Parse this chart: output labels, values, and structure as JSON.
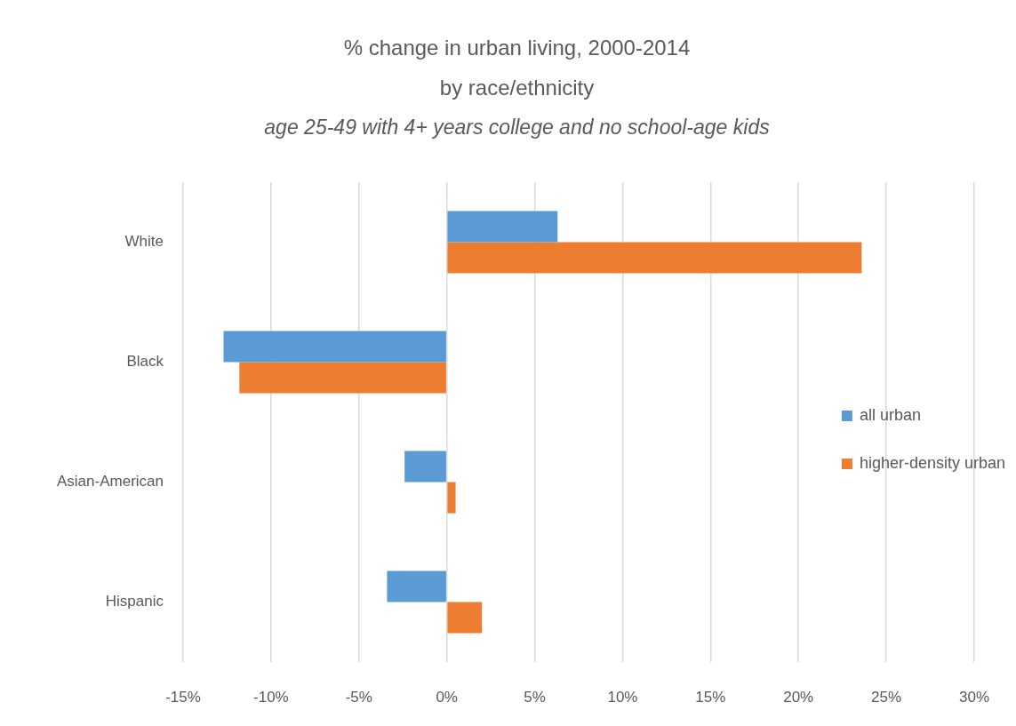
{
  "chart_data": {
    "type": "bar",
    "orientation": "horizontal",
    "title": "% change in urban living, 2000-2014\nby race/ethnicity",
    "subtitle": "age 25-49 with 4+ years college and no school-age kids",
    "categories": [
      "White",
      "Black",
      "Asian-American",
      "Hispanic"
    ],
    "series": [
      {
        "name": "all urban",
        "color": "#5b9bd5",
        "values": [
          6.3,
          -12.7,
          -2.4,
          -3.4
        ]
      },
      {
        "name": "higher-density urban",
        "color": "#ed7d31",
        "values": [
          23.6,
          -11.8,
          0.5,
          2.0
        ]
      }
    ],
    "xlim": [
      -15,
      30
    ],
    "xticks": [
      {
        "value": -15,
        "label": "-15%"
      },
      {
        "value": -10,
        "label": "-10%"
      },
      {
        "value": -5,
        "label": "-5%"
      },
      {
        "value": 0,
        "label": "0%"
      },
      {
        "value": 5,
        "label": "5%"
      },
      {
        "value": 10,
        "label": "10%"
      },
      {
        "value": 15,
        "label": "15%"
      },
      {
        "value": 20,
        "label": "20%"
      },
      {
        "value": 25,
        "label": "25%"
      },
      {
        "value": 30,
        "label": "30%"
      }
    ],
    "grid": "x",
    "legend": "right"
  }
}
